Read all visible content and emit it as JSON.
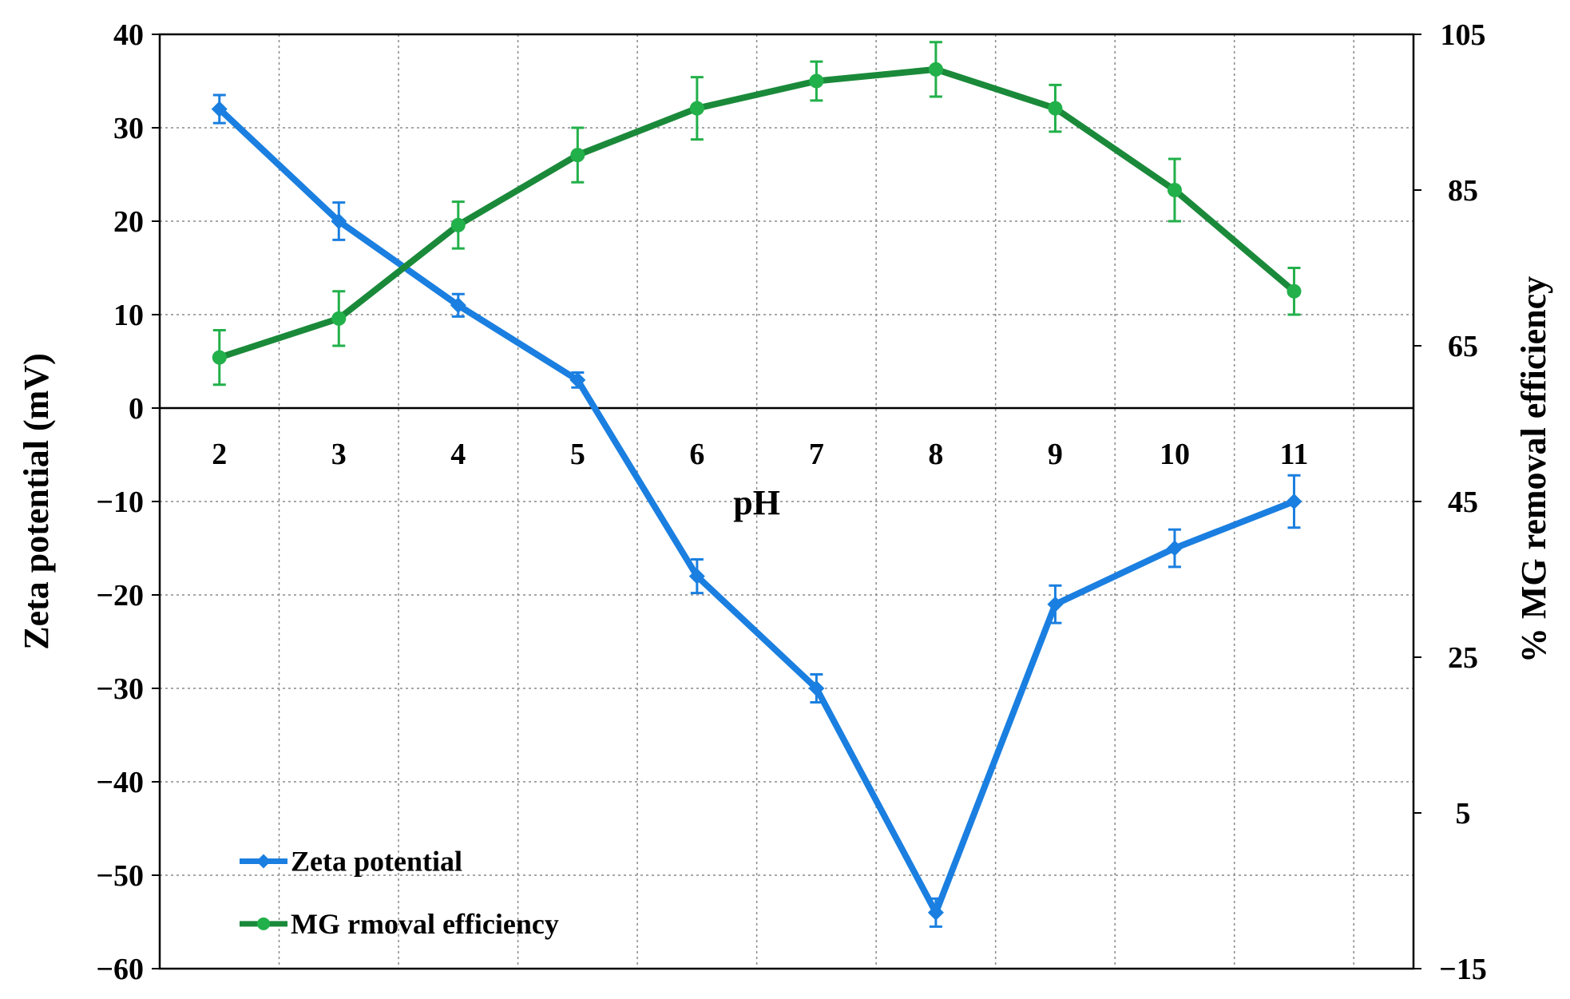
{
  "chart_data": {
    "type": "line",
    "xlabel": "pH",
    "ylabel_left": "Zeta  potential (mV)",
    "ylabel_right": "% MG removal efficiency",
    "x": [
      2,
      3,
      4,
      5,
      6,
      7,
      8,
      9,
      10,
      11
    ],
    "x_tick_labels": [
      "2",
      "3",
      "4",
      "5",
      "6",
      "7",
      "8",
      "9",
      "10",
      "11"
    ],
    "ylim_left": [
      -60,
      40
    ],
    "ylim_right": [
      -15,
      105
    ],
    "y_left_ticks": [
      40,
      30,
      20,
      10,
      0,
      -10,
      -20,
      -30,
      -40,
      -50,
      -60
    ],
    "y_left_tick_labels": [
      "40",
      "30",
      "20",
      "10",
      "0",
      "−10",
      "−20",
      "−30",
      "−40",
      "−50",
      "−60"
    ],
    "y_right_ticks": [
      105,
      85,
      65,
      45,
      25,
      5,
      -15
    ],
    "y_right_tick_labels": [
      "105",
      "85",
      "65",
      "45",
      "25",
      "5",
      "−15"
    ],
    "grid": true,
    "legend_position": "bottom-left",
    "colors": {
      "zeta": "#1a7fe0",
      "mg": "#1a8a3a",
      "mg_marker": "#22b04a"
    },
    "series": [
      {
        "name": "Zeta potential",
        "axis": "left",
        "values": [
          32,
          20,
          11,
          3,
          -18,
          -30,
          -54,
          -21,
          -15,
          -10
        ],
        "errors": [
          1.5,
          2,
          1.2,
          0.8,
          1.8,
          1.5,
          1.5,
          2,
          2,
          2.8
        ]
      },
      {
        "name": "MG rmoval efficiency",
        "axis": "right",
        "values": [
          63.5,
          68.5,
          80.5,
          89.5,
          95.5,
          99,
          100.5,
          95.5,
          85,
          72
        ],
        "errors": [
          3.5,
          3.5,
          3,
          3.5,
          4,
          2.5,
          3.5,
          3,
          4,
          3
        ]
      }
    ]
  }
}
